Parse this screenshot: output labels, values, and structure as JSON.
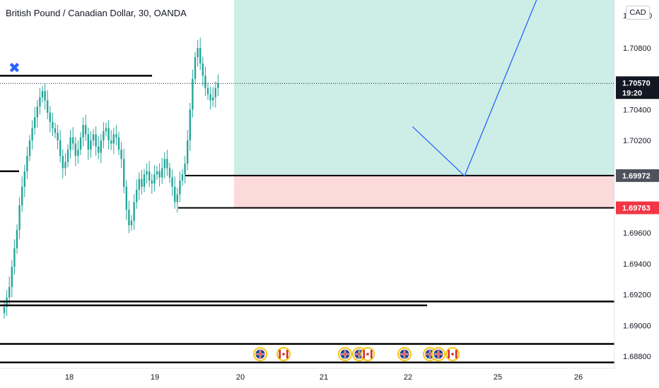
{
  "header": {
    "title": "British Pound / Canadian Dollar, 30, OANDA",
    "currency_button": "CAD"
  },
  "colors": {
    "candle_up": "#26a69a",
    "candle_down": "#26a69a",
    "target_zone": "#cdeee7",
    "stop_zone": "#fcdada",
    "projection_line": "#2962ff",
    "stop_badge": "#f23645",
    "entry_badge": "#50535e",
    "price_badge": "#131722",
    "marker": "#2962ff"
  },
  "axes": {
    "price_ticks": [
      "1.70800",
      "1.70400",
      "1.70200",
      "1.69600",
      "1.69400",
      "1.69200",
      "1.69000",
      "1.68800"
    ],
    "top_partial_tick": "1.7",
    "top_partial_tick_end": "0",
    "date_ticks": [
      "18",
      "19",
      "20",
      "21",
      "22",
      "25",
      "26"
    ]
  },
  "price_badges": {
    "current_price": "1.70570",
    "countdown": "19:20",
    "entry_price": "1.69972",
    "stop_price": "1.69763"
  },
  "drawings": {
    "marker_symbol": "✖",
    "horizontal_lines": [
      1.7062,
      1.7,
      1.69155,
      1.6913,
      1.6888,
      1.6876
    ],
    "entry_level": 1.69972,
    "stop_level": 1.69763,
    "projection_path": [
      {
        "date": "22.05",
        "price": 1.7029
      },
      {
        "date": "22.63",
        "price": 1.6997
      },
      {
        "date": "25.55",
        "price": 1.712
      }
    ]
  },
  "events": {
    "icons": [
      "uk-flag",
      "canada-flag",
      "uk-flag",
      "uk-flag",
      "canada-flag",
      "uk-flag",
      "uk-flag",
      "uk-flag",
      "canada-flag"
    ]
  },
  "chart_data": {
    "type": "candlestick",
    "title": "British Pound / Canadian Dollar, 30, OANDA",
    "x_axis_ticks": [
      "18",
      "19",
      "20",
      "21",
      "22",
      "25",
      "26"
    ],
    "ylim": [
      1.6875,
      1.7105
    ],
    "series": [
      {
        "close": [
          1.6912,
          1.6918,
          1.6925,
          1.6938,
          1.695,
          1.6962,
          1.6978,
          1.699,
          1.7,
          1.701,
          1.702,
          1.7028,
          1.7035,
          1.7042,
          1.7048,
          1.7052,
          1.7046,
          1.7038,
          1.7032,
          1.7028,
          1.7025,
          1.702,
          1.701,
          1.7002,
          1.7006,
          1.7014,
          1.7022,
          1.7018,
          1.701,
          1.7014,
          1.7022,
          1.703,
          1.7024,
          1.7014,
          1.702,
          1.7024,
          1.7016,
          1.7012,
          1.702,
          1.7026,
          1.7028,
          1.702,
          1.7018,
          1.7024,
          1.7022,
          1.7014,
          1.7008,
          1.699,
          1.6975,
          1.6965,
          1.6968,
          1.698,
          1.6988,
          1.6995,
          1.699,
          1.6998,
          1.7,
          1.6994,
          1.6992,
          1.6998,
          1.7,
          1.6996,
          1.7002,
          1.7008,
          1.7002,
          1.6996,
          1.699,
          1.698,
          1.6985,
          1.6994,
          1.6998,
          1.7005,
          1.702,
          1.704,
          1.706,
          1.7074,
          1.708,
          1.707,
          1.7062,
          1.7054,
          1.705,
          1.7046,
          1.7048,
          1.7054,
          1.7057
        ]
      }
    ]
  }
}
